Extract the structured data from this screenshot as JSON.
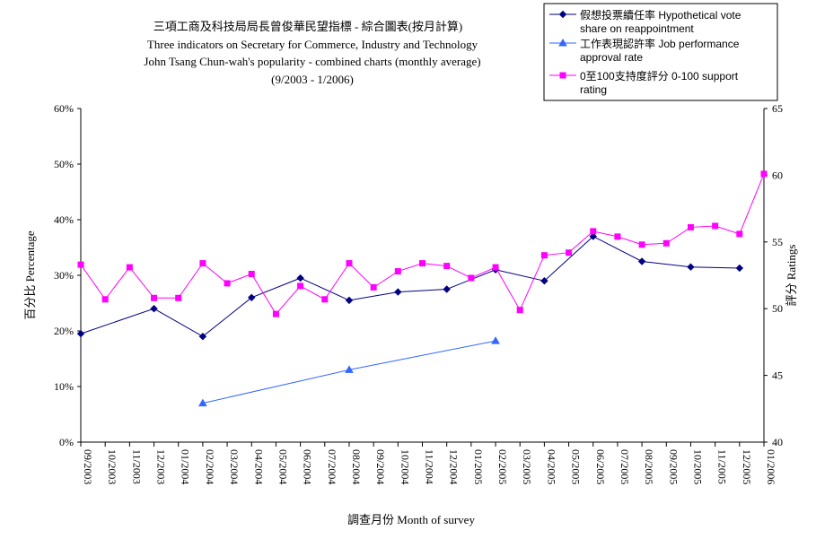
{
  "chart_data": {
    "type": "line",
    "title_lines": [
      "三項工商及科技局局長曾俊華民望指標 - 綜合圖表(按月計算)",
      "Three indicators on Secretary for Commerce, Industry and Technology",
      "John Tsang Chun-wah's popularity - combined charts (monthly average)",
      "(9/2003 - 1/2006)"
    ],
    "xlabel": "調查月份 Month of survey",
    "ylabel_left": "百分比 Percentage",
    "ylabel_right": "評分 Ratings",
    "categories": [
      "09/2003",
      "10/2003",
      "11/2003",
      "12/2003",
      "01/2004",
      "02/2004",
      "03/2004",
      "04/2004",
      "05/2004",
      "06/2004",
      "07/2004",
      "08/2004",
      "09/2004",
      "10/2004",
      "11/2004",
      "12/2004",
      "01/2005",
      "02/2005",
      "03/2005",
      "04/2005",
      "05/2005",
      "06/2005",
      "07/2005",
      "08/2005",
      "09/2005",
      "10/2005",
      "11/2005",
      "12/2005",
      "01/2006"
    ],
    "left_axis": {
      "min": 0,
      "max": 60,
      "step": 10,
      "ticks": [
        "0%",
        "10%",
        "20%",
        "30%",
        "40%",
        "50%",
        "60%"
      ]
    },
    "right_axis": {
      "min": 40,
      "max": 65,
      "step": 5,
      "ticks": [
        "40",
        "45",
        "50",
        "55",
        "60",
        "65"
      ]
    },
    "series": [
      {
        "name": "假想投票續任率 Hypothetical vote share on reappointment",
        "legend_lines": [
          "假想投票續任率 Hypothetical vote",
          "share on reappointment"
        ],
        "axis": "left",
        "color": "#000080",
        "marker": "diamond",
        "points": [
          [
            0,
            19.5
          ],
          [
            3,
            24
          ],
          [
            5,
            19
          ],
          [
            7,
            26
          ],
          [
            9,
            29.5
          ],
          [
            11,
            25.5
          ],
          [
            13,
            27
          ],
          [
            15,
            27.5
          ],
          [
            17,
            31
          ],
          [
            19,
            29
          ],
          [
            21,
            37
          ],
          [
            23,
            32.5
          ],
          [
            25,
            31.5
          ],
          [
            27,
            31.3
          ]
        ]
      },
      {
        "name": "工作表現認許率 Job performance approval rate",
        "legend_lines": [
          "工作表現認許率 Job performance",
          "approval rate"
        ],
        "axis": "left",
        "color": "#3366ff",
        "marker": "triangle",
        "points": [
          [
            5,
            7
          ],
          [
            11,
            13
          ],
          [
            17,
            18.2
          ]
        ]
      },
      {
        "name": "0至100支持度評分 0-100 support rating",
        "legend_lines": [
          "0至100支持度評分 0-100 support",
          "rating"
        ],
        "axis": "right",
        "color": "#ff00ff",
        "marker": "square",
        "points": [
          [
            0,
            53.3
          ],
          [
            1,
            50.7
          ],
          [
            2,
            53.1
          ],
          [
            3,
            50.8
          ],
          [
            4,
            50.8
          ],
          [
            5,
            53.4
          ],
          [
            6,
            51.9
          ],
          [
            7,
            52.6
          ],
          [
            8,
            49.6
          ],
          [
            9,
            51.7
          ],
          [
            10,
            50.7
          ],
          [
            11,
            53.4
          ],
          [
            12,
            51.6
          ],
          [
            13,
            52.8
          ],
          [
            14,
            53.4
          ],
          [
            15,
            53.2
          ],
          [
            16,
            52.3
          ],
          [
            17,
            53.1
          ],
          [
            18,
            49.9
          ],
          [
            19,
            54
          ],
          [
            20,
            54.2
          ],
          [
            21,
            55.8
          ],
          [
            22,
            55.4
          ],
          [
            23,
            54.8
          ],
          [
            24,
            54.9
          ],
          [
            25,
            56.1
          ],
          [
            26,
            56.2
          ],
          [
            27,
            55.6
          ],
          [
            28,
            60.1
          ]
        ]
      }
    ],
    "legend_position": "top-right",
    "grid": false
  }
}
